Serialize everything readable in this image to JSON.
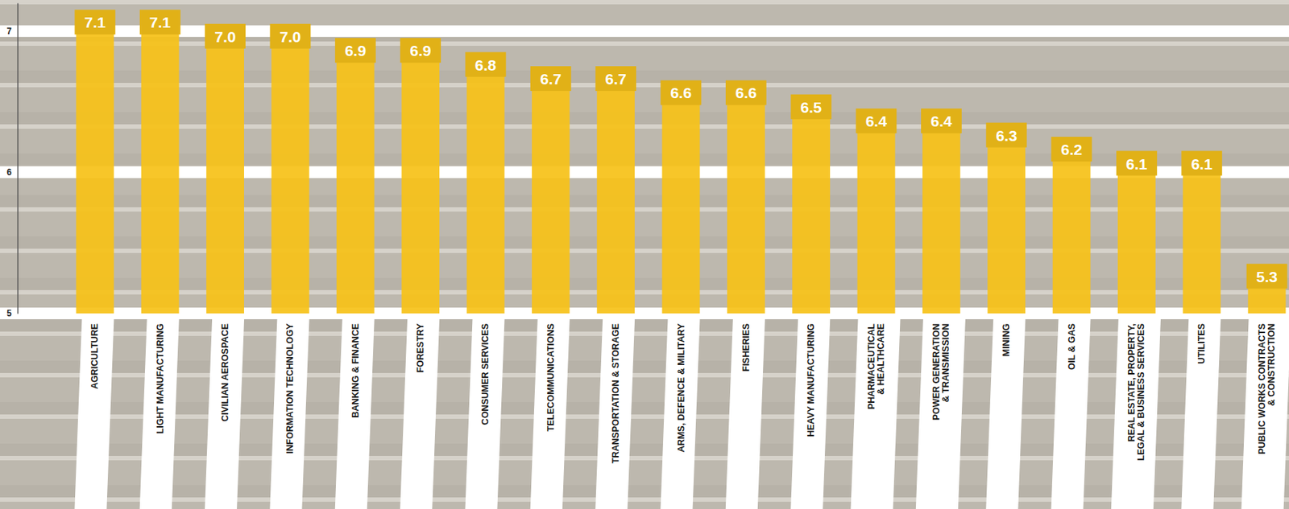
{
  "chart_data": {
    "type": "bar",
    "categories": [
      "AGRICULTURE",
      "LIGHT MANUFACTURING",
      "CIVILIAN AEROSPACE",
      "INFORMATION TECHNOLOGY",
      "BANKING & FINANCE",
      "FORESTRY",
      "CONSUMER SERVICES",
      "TELECOMMUNICATIONS",
      "TRANSPORTATION & STORAGE",
      "ARMS, DEFENCE & MILITARY",
      "FISHERIES",
      "HEAVY MANUFACTURING",
      "PHARMACEUTICAL\n& HEALTHCARE",
      "POWER GENERATION\n& TRANSMISSION",
      "MINING",
      "OIL & GAS",
      "REAL ESTATE, PROPERTY,\nLEGAL & BUSINESS SERVICES",
      "UTILITES",
      "PUBLIC WORKS CONTRACTS\n& CONSTRUCTION"
    ],
    "values": [
      7.1,
      7.1,
      7.0,
      7.0,
      6.9,
      6.9,
      6.8,
      6.7,
      6.7,
      6.6,
      6.6,
      6.5,
      6.4,
      6.4,
      6.3,
      6.2,
      6.1,
      6.1,
      5.3
    ],
    "value_labels": [
      "7.1",
      "7.1",
      "7.0",
      "7.0",
      "6.9",
      "6.9",
      "6.8",
      "6.7",
      "6.7",
      "6.6",
      "6.6",
      "6.5",
      "6.4",
      "6.4",
      "6.3",
      "6.2",
      "6.1",
      "6.1",
      "5.3"
    ],
    "color": "#f6c219",
    "ylim": [
      5,
      7.2
    ],
    "yticks": [
      5,
      6,
      7
    ],
    "grid": true,
    "data_labels": true
  }
}
